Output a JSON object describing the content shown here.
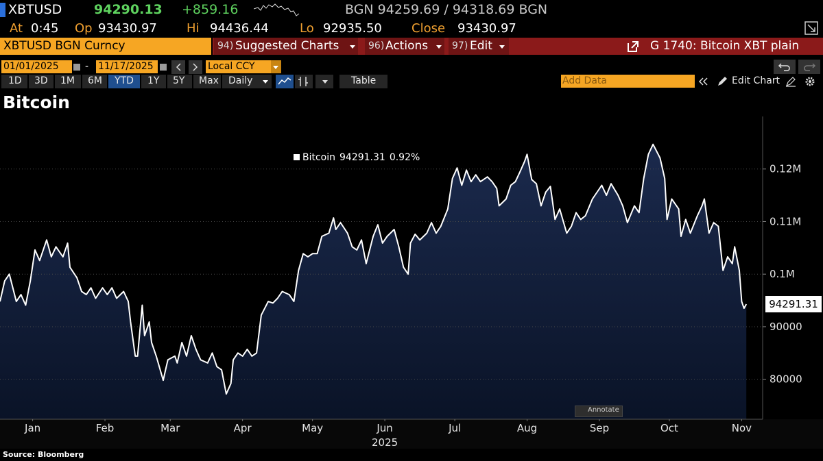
{
  "header": {
    "symbol": "XBTUSD",
    "last": "94290.13",
    "change": "+859.16",
    "quote": "BGN 94259.69 / 94318.69 BGN",
    "stats": [
      {
        "label": "At",
        "value": "0:45"
      },
      {
        "label": "Op",
        "value": "93430.97"
      },
      {
        "label": "Hi",
        "value": "94436.44"
      },
      {
        "label": "Lo",
        "value": "92935.50"
      },
      {
        "label": "Close",
        "value": "93430.97"
      }
    ]
  },
  "menu": {
    "security": "XBTUSD BGN Curncy",
    "items": [
      {
        "key": "94)",
        "label": "Suggested Charts"
      },
      {
        "key": "96)",
        "label": "Actions"
      },
      {
        "key": "97)",
        "label": "Edit"
      }
    ],
    "function": "G 1740: Bitcoin XBT plain"
  },
  "controls": {
    "start_date": "01/01/2025",
    "separator": "-",
    "end_date": "11/17/2025",
    "currency": "Local CCY",
    "ranges": [
      "1D",
      "3D",
      "1M",
      "6M",
      "YTD",
      "1Y",
      "5Y",
      "Max"
    ],
    "frequency": "Daily",
    "table": "Table",
    "add_data": "Add Data",
    "edit_chart": "Edit Chart"
  },
  "chart_data": {
    "type": "line",
    "title": "Bitcoin",
    "x_label": "2025",
    "change_label": "0.92%",
    "annotate": "Annotate",
    "x": [
      0,
      2,
      4,
      7,
      9,
      11,
      13,
      15,
      17,
      20,
      22,
      24,
      27,
      29,
      30,
      33,
      35,
      37,
      39,
      41,
      44,
      46,
      48,
      50,
      53,
      55,
      56,
      58,
      59,
      61,
      62,
      64,
      65,
      67,
      70,
      71,
      72,
      75,
      76,
      78,
      80,
      82,
      84,
      86,
      89,
      91,
      93,
      95,
      97,
      99,
      100,
      102,
      104,
      106,
      108,
      110,
      112,
      115,
      117,
      119,
      121,
      124,
      126,
      128,
      130,
      132,
      134,
      136,
      138,
      141,
      143,
      144,
      146,
      149,
      151,
      153,
      155,
      157,
      160,
      162,
      164,
      166,
      169,
      171,
      173,
      175,
      176,
      178,
      180,
      183,
      185,
      187,
      189,
      192,
      194,
      196,
      198,
      200,
      202,
      204,
      206,
      209,
      211,
      213,
      214,
      217,
      219,
      221,
      223,
      225,
      226,
      228,
      230,
      232,
      234,
      236,
      238,
      240,
      243,
      245,
      247,
      249,
      251,
      254,
      256,
      258,
      260,
      262,
      265,
      267,
      269,
      272,
      274,
      276,
      278,
      280,
      283,
      285,
      286,
      288,
      291,
      292,
      294,
      296,
      299,
      301,
      302,
      304,
      306,
      308,
      310,
      312,
      314,
      315,
      317,
      318,
      319,
      320
    ],
    "series": [
      {
        "name": "Bitcoin",
        "color": "#ffffff",
        "values": [
          94800,
          98700,
          100000,
          94800,
          96100,
          94100,
          98700,
          104600,
          102600,
          106500,
          103300,
          105200,
          103300,
          105900,
          101300,
          99300,
          96700,
          96100,
          97400,
          95400,
          97400,
          96100,
          97400,
          95400,
          96700,
          94800,
          90900,
          84400,
          84400,
          94100,
          88300,
          90900,
          87000,
          84400,
          79800,
          81800,
          83700,
          84400,
          83100,
          87000,
          84400,
          88300,
          85700,
          83700,
          83100,
          85000,
          82400,
          81800,
          77200,
          79200,
          83700,
          85000,
          84400,
          85700,
          84400,
          85000,
          92200,
          94800,
          94500,
          95400,
          96700,
          96100,
          94800,
          100700,
          103900,
          103300,
          103900,
          103900,
          107200,
          107800,
          110700,
          108500,
          109800,
          107800,
          105200,
          104600,
          106500,
          102000,
          107200,
          109400,
          105900,
          107200,
          108500,
          105200,
          101300,
          100000,
          105900,
          107600,
          106500,
          107800,
          109800,
          107800,
          109100,
          112400,
          118200,
          120200,
          116900,
          119800,
          117600,
          118900,
          117600,
          118500,
          117600,
          116300,
          113000,
          114300,
          116900,
          117600,
          119500,
          121500,
          122800,
          118000,
          117200,
          113000,
          115600,
          116700,
          110400,
          112400,
          107800,
          109100,
          111700,
          110400,
          111100,
          114300,
          115600,
          116900,
          115000,
          117200,
          115000,
          113000,
          109800,
          113000,
          111700,
          118200,
          122800,
          124700,
          122100,
          118200,
          110400,
          114300,
          112400,
          107200,
          110400,
          107800,
          111100,
          113000,
          114300,
          107800,
          109800,
          109100,
          100700,
          103300,
          102000,
          105200,
          100700,
          94800,
          93500,
          94291.31
        ]
      }
    ],
    "xlim": [
      0,
      327
    ],
    "xticks": [
      {
        "value": 14,
        "label": "Jan"
      },
      {
        "value": 45,
        "label": "Feb"
      },
      {
        "value": 73,
        "label": "Mar"
      },
      {
        "value": 104,
        "label": "Apr"
      },
      {
        "value": 134,
        "label": "May"
      },
      {
        "value": 165,
        "label": "Jun"
      },
      {
        "value": 195,
        "label": "Jul"
      },
      {
        "value": 226,
        "label": "Aug"
      },
      {
        "value": 257,
        "label": "Sep"
      },
      {
        "value": 287,
        "label": "Oct"
      },
      {
        "value": 318,
        "label": "Nov"
      }
    ],
    "ylim": [
      72400,
      130000
    ],
    "yticks": [
      80000,
      90000,
      {
        "value": 100000,
        "label": "0.1M"
      },
      {
        "value": 110000,
        "label": "0.11M"
      },
      {
        "value": 120000,
        "label": "0.12M"
      }
    ],
    "grid": true,
    "area_color": "#0f1b35"
  },
  "footer": {
    "source": "Source: Bloomberg"
  }
}
